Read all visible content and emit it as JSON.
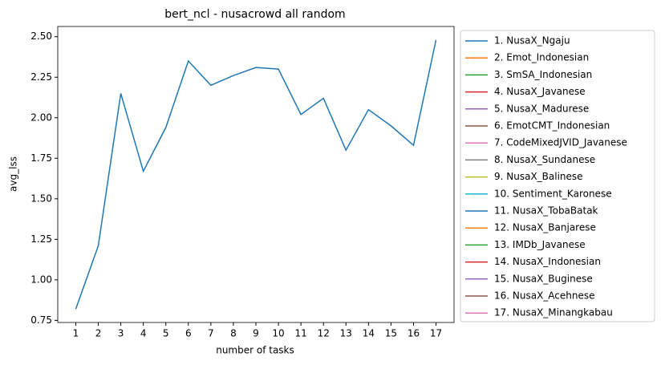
{
  "chart_data": {
    "type": "line",
    "title": "bert_ncl - nusacrowd all random",
    "xlabel": "number of tasks",
    "ylabel": "avg_lss",
    "x": [
      1,
      2,
      3,
      4,
      5,
      6,
      7,
      8,
      9,
      10,
      11,
      12,
      13,
      14,
      15,
      16,
      17
    ],
    "xlim": [
      0.2,
      17.8
    ],
    "xticks": [
      1,
      2,
      3,
      4,
      5,
      6,
      7,
      8,
      9,
      10,
      11,
      12,
      13,
      14,
      15,
      16,
      17
    ],
    "ylim": [
      0.737,
      2.563
    ],
    "yticks": [
      {
        "value": 0.75,
        "label": "0.75"
      },
      {
        "value": 1.0,
        "label": "1.00"
      },
      {
        "value": 1.25,
        "label": "1.25"
      },
      {
        "value": 1.5,
        "label": "1.50"
      },
      {
        "value": 1.75,
        "label": "1.75"
      },
      {
        "value": 2.0,
        "label": "2.00"
      },
      {
        "value": 2.25,
        "label": "2.25"
      },
      {
        "value": 2.5,
        "label": "2.50"
      }
    ],
    "legend": "outside-right",
    "series": [
      {
        "name": "1. NusaX_Ngaju",
        "color": "#1f77b4",
        "values": [
          0.82,
          1.21,
          2.15,
          1.67,
          1.94,
          2.35,
          2.2,
          2.26,
          2.31,
          2.3,
          2.02,
          2.12,
          1.8,
          2.05,
          1.95,
          1.83,
          2.48
        ]
      },
      {
        "name": "2. Emot_Indonesian",
        "color": "#ff7f0e",
        "values": [
          null,
          null,
          null,
          null,
          null,
          null,
          null,
          null,
          null,
          null,
          null,
          null,
          null,
          null,
          null,
          null,
          null
        ]
      },
      {
        "name": "3. SmSA_Indonesian",
        "color": "#2ca02c",
        "values": [
          null,
          null,
          null,
          null,
          null,
          null,
          null,
          null,
          null,
          null,
          null,
          null,
          null,
          null,
          null,
          null,
          null
        ]
      },
      {
        "name": "4. NusaX_Javanese",
        "color": "#d62728",
        "values": [
          null,
          null,
          null,
          null,
          null,
          null,
          null,
          null,
          null,
          null,
          null,
          null,
          null,
          null,
          null,
          null,
          null
        ]
      },
      {
        "name": "5. NusaX_Madurese",
        "color": "#9467bd",
        "values": [
          null,
          null,
          null,
          null,
          null,
          null,
          null,
          null,
          null,
          null,
          null,
          null,
          null,
          null,
          null,
          null,
          null
        ]
      },
      {
        "name": "6. EmotCMT_Indonesian",
        "color": "#8c564b",
        "values": [
          null,
          null,
          null,
          null,
          null,
          null,
          null,
          null,
          null,
          null,
          null,
          null,
          null,
          null,
          null,
          null,
          null
        ]
      },
      {
        "name": "7. CodeMixedJVID_Javanese",
        "color": "#e377c2",
        "values": [
          null,
          null,
          null,
          null,
          null,
          null,
          null,
          null,
          null,
          null,
          null,
          null,
          null,
          null,
          null,
          null,
          null
        ]
      },
      {
        "name": "8. NusaX_Sundanese",
        "color": "#7f7f7f",
        "values": [
          null,
          null,
          null,
          null,
          null,
          null,
          null,
          null,
          null,
          null,
          null,
          null,
          null,
          null,
          null,
          null,
          null
        ]
      },
      {
        "name": "9. NusaX_Balinese",
        "color": "#bcbd22",
        "values": [
          null,
          null,
          null,
          null,
          null,
          null,
          null,
          null,
          null,
          null,
          null,
          null,
          null,
          null,
          null,
          null,
          null
        ]
      },
      {
        "name": "10. Sentiment_Karonese",
        "color": "#17becf",
        "values": [
          null,
          null,
          null,
          null,
          null,
          null,
          null,
          null,
          null,
          null,
          null,
          null,
          null,
          null,
          null,
          null,
          null
        ]
      },
      {
        "name": "11. NusaX_TobaBatak",
        "color": "#1f77b4",
        "values": [
          null,
          null,
          null,
          null,
          null,
          null,
          null,
          null,
          null,
          null,
          null,
          null,
          null,
          null,
          null,
          null,
          null
        ]
      },
      {
        "name": "12. NusaX_Banjarese",
        "color": "#ff7f0e",
        "values": [
          null,
          null,
          null,
          null,
          null,
          null,
          null,
          null,
          null,
          null,
          null,
          null,
          null,
          null,
          null,
          null,
          null
        ]
      },
      {
        "name": "13. IMDb_Javanese",
        "color": "#2ca02c",
        "values": [
          null,
          null,
          null,
          null,
          null,
          null,
          null,
          null,
          null,
          null,
          null,
          null,
          null,
          null,
          null,
          null,
          null
        ]
      },
      {
        "name": "14. NusaX_Indonesian",
        "color": "#d62728",
        "values": [
          null,
          null,
          null,
          null,
          null,
          null,
          null,
          null,
          null,
          null,
          null,
          null,
          null,
          null,
          null,
          null,
          null
        ]
      },
      {
        "name": "15. NusaX_Buginese",
        "color": "#9467bd",
        "values": [
          null,
          null,
          null,
          null,
          null,
          null,
          null,
          null,
          null,
          null,
          null,
          null,
          null,
          null,
          null,
          null,
          null
        ]
      },
      {
        "name": "16. NusaX_Acehnese",
        "color": "#8c564b",
        "values": [
          null,
          null,
          null,
          null,
          null,
          null,
          null,
          null,
          null,
          null,
          null,
          null,
          null,
          null,
          null,
          null,
          null
        ]
      },
      {
        "name": "17. NusaX_Minangkabau",
        "color": "#e377c2",
        "values": [
          null,
          null,
          null,
          null,
          null,
          null,
          null,
          null,
          null,
          null,
          null,
          null,
          null,
          null,
          null,
          null,
          null
        ]
      }
    ]
  }
}
